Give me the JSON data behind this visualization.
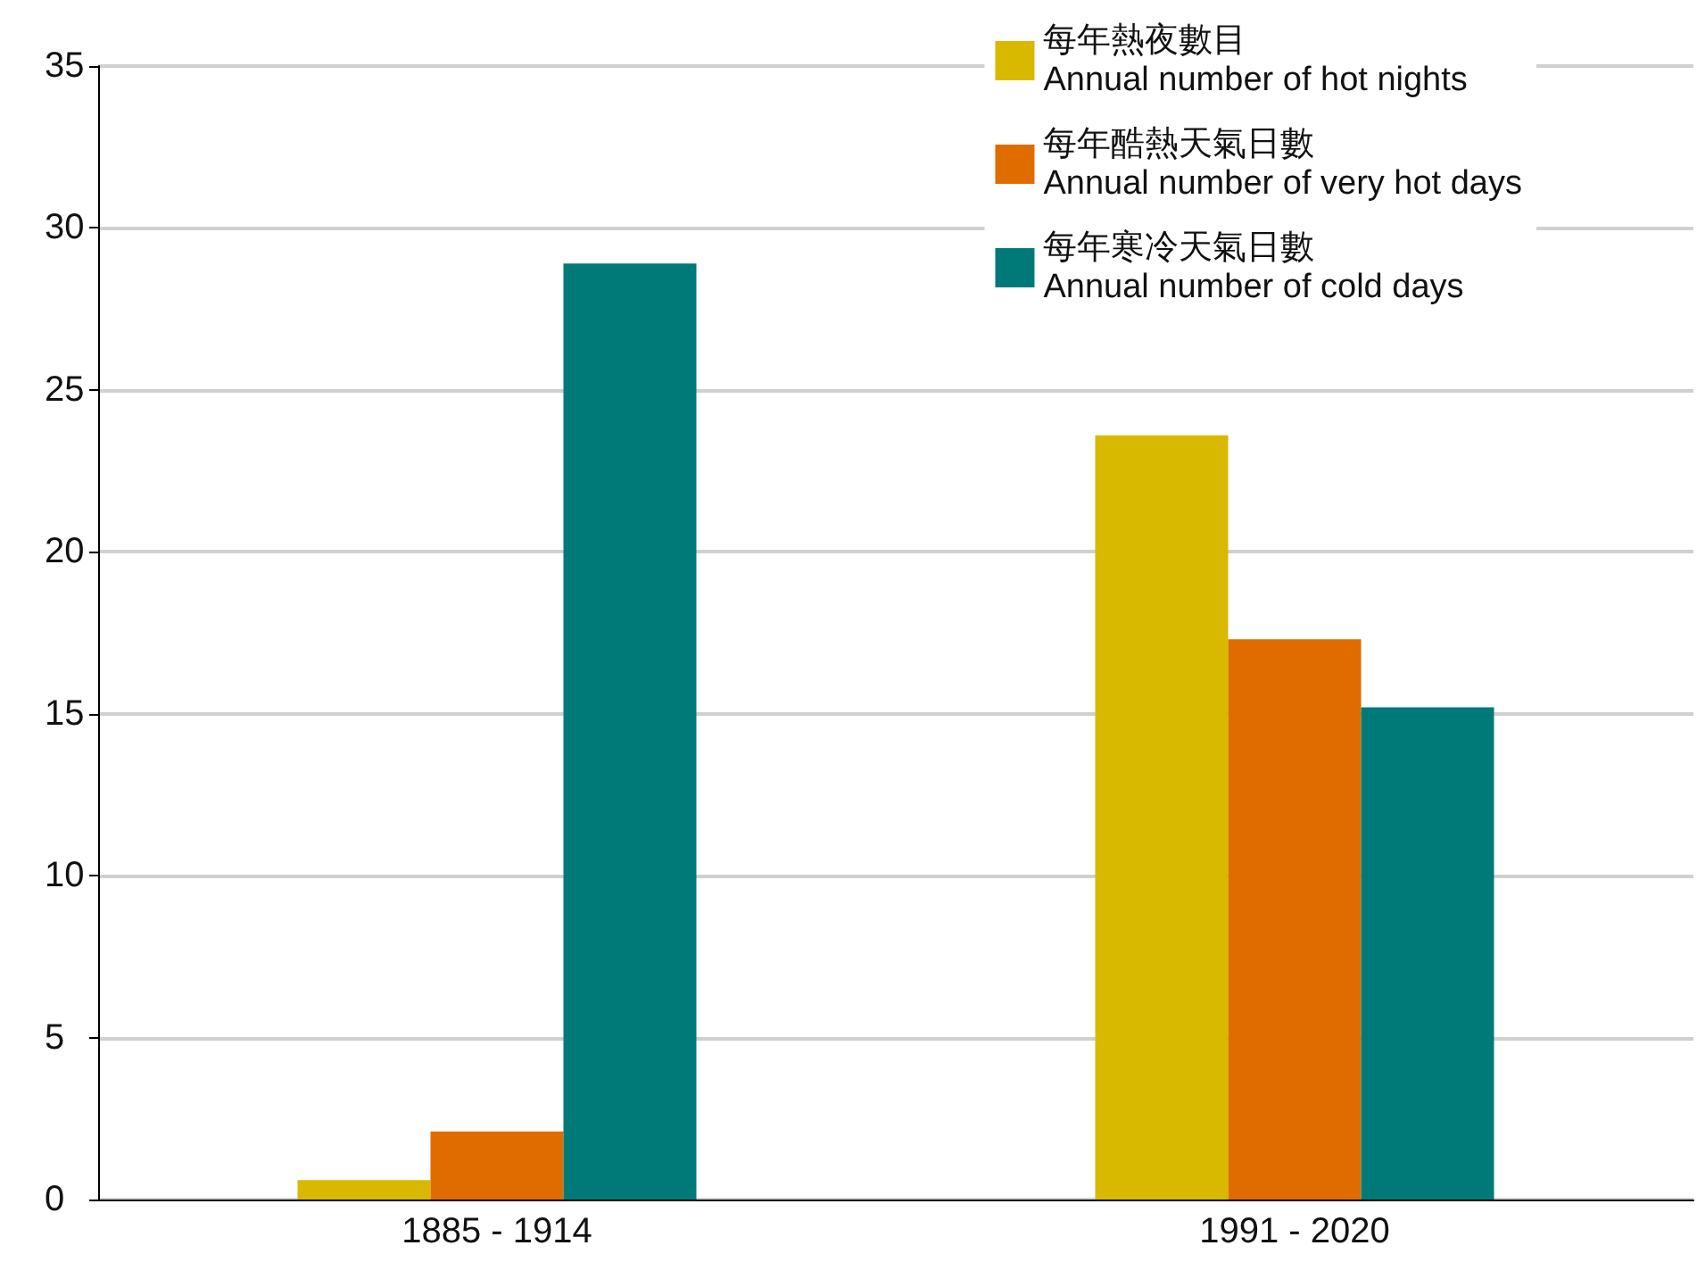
{
  "chart_data": {
    "type": "bar",
    "categories": [
      "1885 - 1914",
      "1991 - 2020"
    ],
    "series": [
      {
        "name": "每年熱夜數目\nAnnual number of hot nights",
        "color": "#d9b800",
        "values": [
          0.6,
          23.6
        ]
      },
      {
        "name": "每年酷熱天氣日數\nAnnual number of very hot days",
        "color": "#e06c00",
        "values": [
          2.1,
          17.3
        ]
      },
      {
        "name": "每年寒冷天氣日數\nAnnual number of cold days",
        "color": "#007a78",
        "values": [
          28.9,
          15.2
        ]
      }
    ],
    "ylim": [
      0,
      35
    ],
    "yticks": [
      0,
      5,
      10,
      15,
      20,
      25,
      30,
      35
    ],
    "grid": "y",
    "legend": "top right"
  }
}
